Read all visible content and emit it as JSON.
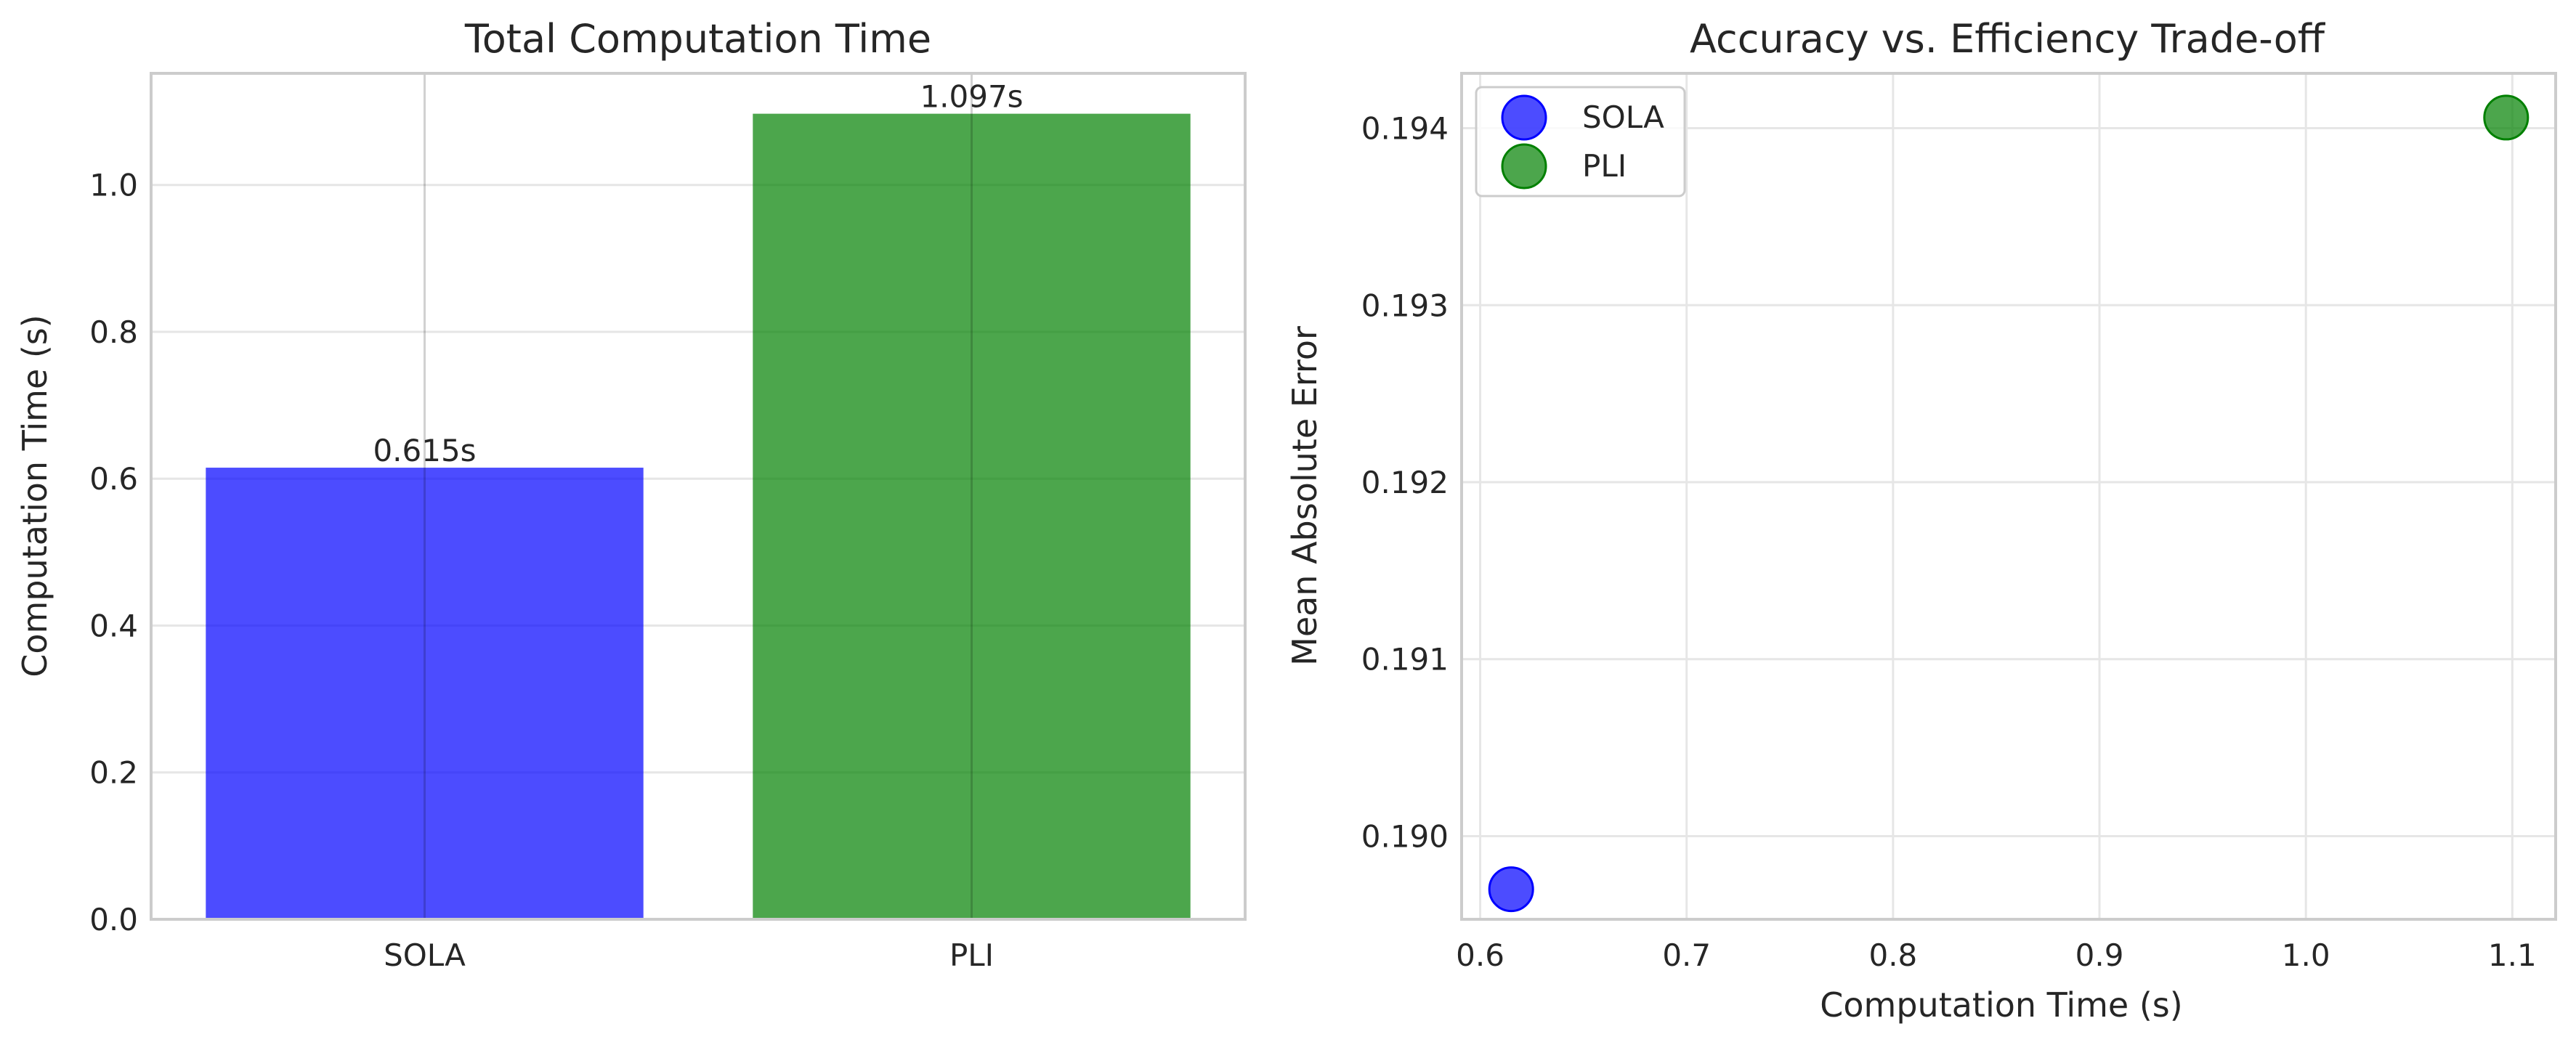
{
  "chart_data": [
    {
      "type": "bar",
      "title": "Total Computation Time",
      "xlabel": "",
      "ylabel": "Computation Time (s)",
      "categories": [
        "SOLA",
        "PLI"
      ],
      "values": [
        0.615,
        1.097
      ],
      "data_labels": [
        "0.615s",
        "1.097s"
      ],
      "colors": [
        "#0000ff",
        "#008000"
      ],
      "ylim": [
        0,
        1.152
      ],
      "yticks": [
        0.0,
        0.2,
        0.4,
        0.6,
        0.8,
        1.0
      ],
      "ytick_labels": [
        "0.0",
        "0.2",
        "0.4",
        "0.6",
        "0.8",
        "1.0"
      ],
      "grid": true,
      "legend": null
    },
    {
      "type": "scatter",
      "title": "Accuracy vs. Efficiency Trade-off",
      "xlabel": "Computation Time (s)",
      "ylabel": "Mean Absolute Error",
      "series": [
        {
          "name": "SOLA",
          "x": [
            0.615
          ],
          "y": [
            0.1897
          ],
          "color": "#0000ff"
        },
        {
          "name": "PLI",
          "x": [
            1.097
          ],
          "y": [
            0.19406
          ],
          "color": "#008000"
        }
      ],
      "xlim": [
        0.591,
        1.121
      ],
      "ylim": [
        0.18953,
        0.19431
      ],
      "xticks": [
        0.6,
        0.7,
        0.8,
        0.9,
        1.0,
        1.1
      ],
      "xtick_labels": [
        "0.6",
        "0.7",
        "0.8",
        "0.9",
        "1.0",
        "1.1"
      ],
      "yticks": [
        0.19,
        0.191,
        0.192,
        0.193,
        0.194
      ],
      "ytick_labels": [
        "0.190",
        "0.191",
        "0.192",
        "0.193",
        "0.194"
      ],
      "grid": true,
      "legend": "top-left"
    }
  ]
}
